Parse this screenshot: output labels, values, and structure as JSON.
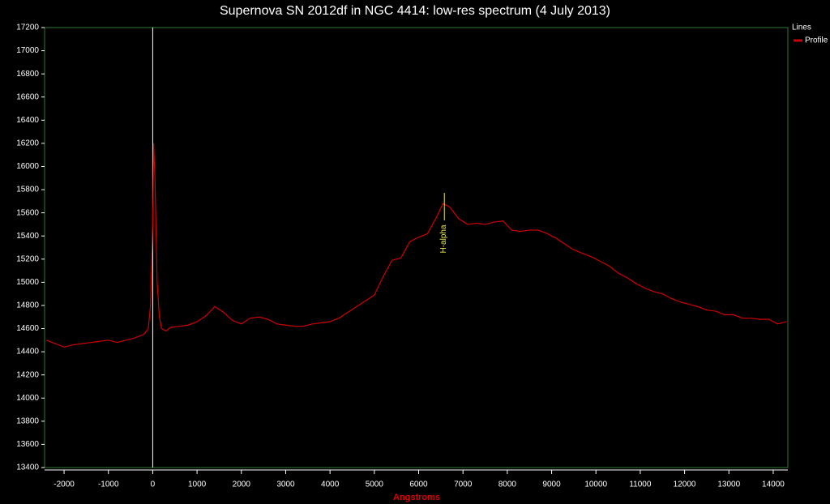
{
  "chart_data": {
    "type": "line",
    "title": "Supernova SN 2012df in NGC 4414: low-res spectrum (4 July 2013)",
    "x_label": "Angstroms",
    "legend_title": "Lines",
    "legend_position": "right",
    "x": [
      -2400,
      -2200,
      -2000,
      -1800,
      -1600,
      -1400,
      -1200,
      -1000,
      -800,
      -600,
      -400,
      -200,
      -100,
      -50,
      0,
      20,
      50,
      100,
      150,
      200,
      300,
      400,
      600,
      800,
      1000,
      1200,
      1400,
      1600,
      1800,
      2000,
      2200,
      2400,
      2600,
      2800,
      3000,
      3200,
      3400,
      3600,
      3800,
      4000,
      4200,
      4400,
      4600,
      4800,
      5000,
      5200,
      5400,
      5600,
      5800,
      6000,
      6200,
      6400,
      6550,
      6700,
      6900,
      7100,
      7300,
      7500,
      7700,
      7900,
      8100,
      8300,
      8500,
      8700,
      8900,
      9100,
      9300,
      9500,
      9700,
      9900,
      10100,
      10300,
      10500,
      10700,
      10900,
      11100,
      11300,
      11500,
      11700,
      11900,
      12100,
      12300,
      12500,
      12700,
      12900,
      13100,
      13300,
      13500,
      13700,
      13900,
      14100,
      14300
    ],
    "series": [
      {
        "name": "Profile",
        "color": "#d00000",
        "values": [
          14500,
          14470,
          14440,
          14460,
          14470,
          14480,
          14490,
          14500,
          14480,
          14500,
          14520,
          14550,
          14600,
          14800,
          15500,
          16200,
          15900,
          15000,
          14700,
          14600,
          14580,
          14610,
          14620,
          14630,
          14660,
          14710,
          14790,
          14740,
          14670,
          14640,
          14690,
          14700,
          14680,
          14640,
          14630,
          14620,
          14620,
          14640,
          14650,
          14660,
          14690,
          14740,
          14790,
          14840,
          14890,
          15050,
          15190,
          15210,
          15350,
          15390,
          15420,
          15560,
          15680,
          15650,
          15550,
          15500,
          15510,
          15500,
          15520,
          15530,
          15450,
          15440,
          15450,
          15450,
          15420,
          15380,
          15330,
          15280,
          15250,
          15220,
          15180,
          15140,
          15080,
          15040,
          14990,
          14950,
          14920,
          14900,
          14860,
          14830,
          14810,
          14790,
          14760,
          14750,
          14720,
          14720,
          14690,
          14690,
          14680,
          14680,
          14640,
          14660
        ]
      }
    ],
    "vlines": [
      0
    ],
    "annotations": [
      {
        "text": "H-alpha",
        "x": 6580
      }
    ],
    "xlim": [
      -2440,
      14330
    ],
    "ylim": [
      13400,
      17200
    ],
    "xticks": [
      -2000,
      -1000,
      0,
      1000,
      2000,
      3000,
      4000,
      5000,
      6000,
      7000,
      8000,
      9000,
      10000,
      11000,
      12000,
      13000,
      14000
    ],
    "yticks": [
      13400,
      13600,
      13800,
      14000,
      14200,
      14400,
      14600,
      14800,
      15000,
      15200,
      15400,
      15600,
      15800,
      16000,
      16200,
      16400,
      16600,
      16800,
      17000,
      17200
    ],
    "background": "#000000",
    "frame_color": "#2e7d32"
  }
}
